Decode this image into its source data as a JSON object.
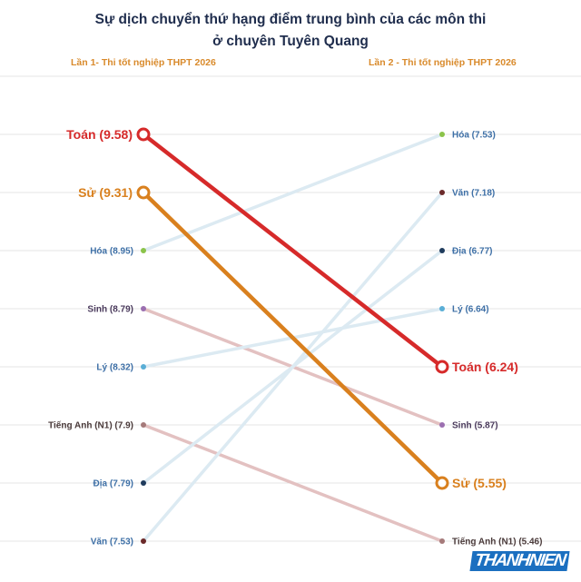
{
  "header": {
    "title_line1": "Sự dịch chuyển thứ hạng điểm trung bình của các môn thi",
    "title_line2": "ở chuyên Tuyên Quang",
    "left_column": "Lần 1- Thi tốt nghiệp THPT 2026",
    "right_column": "Lần 2 - Thi tốt nghiệp THPT 2026"
  },
  "brand": {
    "text": "THANHNIEN",
    "color": "#1b6fc0"
  },
  "chart_data": {
    "type": "slope",
    "title": "Sự dịch chuyển thứ hạng điểm trung bình của các môn thi ở chuyên Tuyên Quang",
    "left_label": "Lần 1- Thi tốt nghiệp THPT 2026",
    "right_label": "Lần 2 - Thi tốt nghiệp THPT 2026",
    "ranks": 8,
    "subjects": [
      {
        "name": "Toán",
        "left_text": "Toán (9.58)",
        "right_text": "Toán (6.24)",
        "left_value": 9.58,
        "right_value": 6.24,
        "left_rank": 1,
        "right_rank": 5,
        "color": "#d62a2a",
        "line_color": "#d62a2a",
        "emphasis": true,
        "label_color": "#d62a2a"
      },
      {
        "name": "Sử",
        "left_text": "Sử (9.31)",
        "right_text": "Sử (5.55)",
        "left_value": 9.31,
        "right_value": 5.55,
        "left_rank": 2,
        "right_rank": 7,
        "color": "#d9801e",
        "line_color": "#d9801e",
        "emphasis": true,
        "label_color": "#d9801e"
      },
      {
        "name": "Hóa",
        "left_text": "Hóa (8.95)",
        "right_text": "Hóa (7.53)",
        "left_value": 8.95,
        "right_value": 7.53,
        "left_rank": 3,
        "right_rank": 1,
        "color": "#8bc34a",
        "line_color": "#dceaf2",
        "emphasis": false,
        "label_color": "#3d6fa6"
      },
      {
        "name": "Sinh",
        "left_text": "Sinh (8.79)",
        "right_text": "Sinh (5.87)",
        "left_value": 8.79,
        "right_value": 5.87,
        "left_rank": 4,
        "right_rank": 6,
        "color": "#9b6fb0",
        "line_color": "#e3c1c1",
        "emphasis": false,
        "label_color": "#4a3a5c"
      },
      {
        "name": "Lý",
        "left_text": "Lý (8.32)",
        "right_text": "Lý (6.64)",
        "left_value": 8.32,
        "right_value": 6.64,
        "left_rank": 5,
        "right_rank": 4,
        "color": "#5aaed6",
        "line_color": "#dceaf2",
        "emphasis": false,
        "label_color": "#3d6fa6"
      },
      {
        "name": "Tiếng Anh (N1)",
        "left_text": "Tiếng Anh (N1) (7.9)",
        "right_text": "Tiếng Anh (N1) (5.46)",
        "left_value": 7.9,
        "right_value": 5.46,
        "left_rank": 6,
        "right_rank": 8,
        "color": "#a57a7a",
        "line_color": "#e3c1c1",
        "emphasis": false,
        "label_color": "#4a3a3a"
      },
      {
        "name": "Địa",
        "left_text": "Địa  (7.79)",
        "right_text": "Địa  (6.77)",
        "left_value": 7.79,
        "right_value": 6.77,
        "left_rank": 7,
        "right_rank": 3,
        "color": "#1f3b5c",
        "line_color": "#dceaf2",
        "emphasis": false,
        "label_color": "#3d6fa6"
      },
      {
        "name": "Văn",
        "left_text": "Văn  (7.53)",
        "right_text": "Văn  (7.18)",
        "left_value": 7.53,
        "right_value": 7.18,
        "left_rank": 8,
        "right_rank": 2,
        "color": "#6b2a2a",
        "line_color": "#dceaf2",
        "emphasis": false,
        "label_color": "#3d6fa6"
      }
    ]
  }
}
